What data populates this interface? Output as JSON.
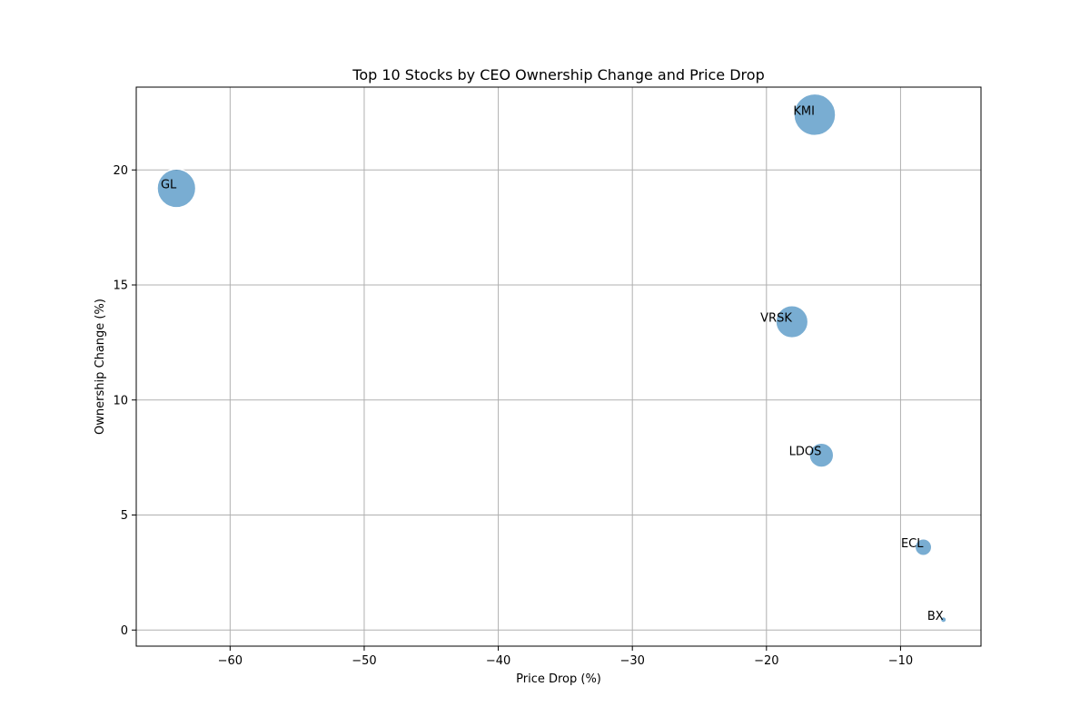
{
  "chart_data": {
    "type": "scatter",
    "title": "Top 10 Stocks by CEO Ownership Change and Price Drop",
    "xlabel": "Price Drop (%)",
    "ylabel": "Ownership Change (%)",
    "xlim": [
      -67,
      -4
    ],
    "ylim": [
      -0.7,
      23.6
    ],
    "xticks": [
      -60,
      -50,
      -40,
      -30,
      -20,
      -10
    ],
    "yticks": [
      0,
      5,
      10,
      15,
      20
    ],
    "grid": true,
    "bubble_color": "#1f77b4",
    "bubble_opacity": 0.6,
    "points": [
      {
        "label": "KMI",
        "x": -16.4,
        "y": 22.4,
        "size": 22.4
      },
      {
        "label": "GL",
        "x": -64.0,
        "y": 19.2,
        "size": 19.2
      },
      {
        "label": "VRSK",
        "x": -18.1,
        "y": 13.4,
        "size": 13.4
      },
      {
        "label": "LDOS",
        "x": -15.9,
        "y": 7.6,
        "size": 7.6
      },
      {
        "label": "ECL",
        "x": -8.3,
        "y": 3.6,
        "size": 3.6
      },
      {
        "label": "BX",
        "x": -6.8,
        "y": 0.45,
        "size": 0.45
      }
    ]
  }
}
